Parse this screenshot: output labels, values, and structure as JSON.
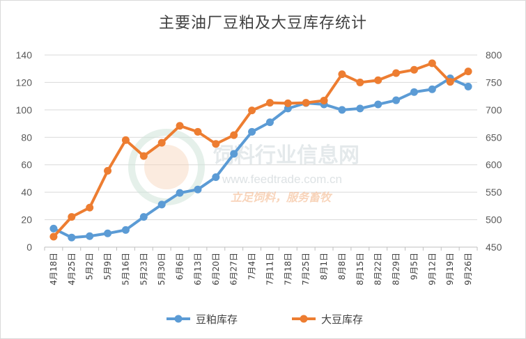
{
  "chart_data": {
    "type": "line",
    "title": "主要油厂豆粕及大豆库存统计",
    "categories": [
      "4月18日",
      "4月25日",
      "5月2日",
      "5月9日",
      "5月16日",
      "5月23日",
      "5月30日",
      "6月6日",
      "6月13日",
      "6月20日",
      "6月27日",
      "7月4日",
      "7月11日",
      "7月18日",
      "7月25日",
      "8月1日",
      "8月8日",
      "8月15日",
      "8月22日",
      "8月29日",
      "9月5日",
      "9月12日",
      "9月19日",
      "9月26日"
    ],
    "series": [
      {
        "name": "豆粕库存",
        "axis": "left",
        "color": "#5b9bd5",
        "values": [
          13.5,
          7,
          8,
          10,
          12.5,
          22,
          31,
          39.5,
          42,
          51,
          68,
          84,
          91,
          101,
          105,
          104,
          100,
          101,
          104,
          107,
          113,
          115,
          123,
          117
        ]
      },
      {
        "name": "大豆库存",
        "axis": "right",
        "color": "#ed7d31",
        "values": [
          469,
          505,
          522,
          589,
          645,
          616,
          640,
          671,
          660,
          638,
          654,
          699,
          713,
          712,
          713,
          717,
          765,
          750,
          754,
          767,
          773,
          785,
          751,
          770
        ]
      }
    ],
    "y_left": {
      "min": 0,
      "max": 140,
      "ticks": [
        0,
        20,
        40,
        60,
        80,
        100,
        120,
        140
      ]
    },
    "y_right": {
      "min": 450,
      "max": 800,
      "ticks": [
        450,
        500,
        550,
        600,
        650,
        700,
        750,
        800
      ]
    },
    "grid": true,
    "legend_position": "bottom"
  },
  "watermark": {
    "name": "饲料行业信息网",
    "url": "www.feedtrade.com.cn",
    "slogan": "立足饲料，服务畜牧"
  }
}
